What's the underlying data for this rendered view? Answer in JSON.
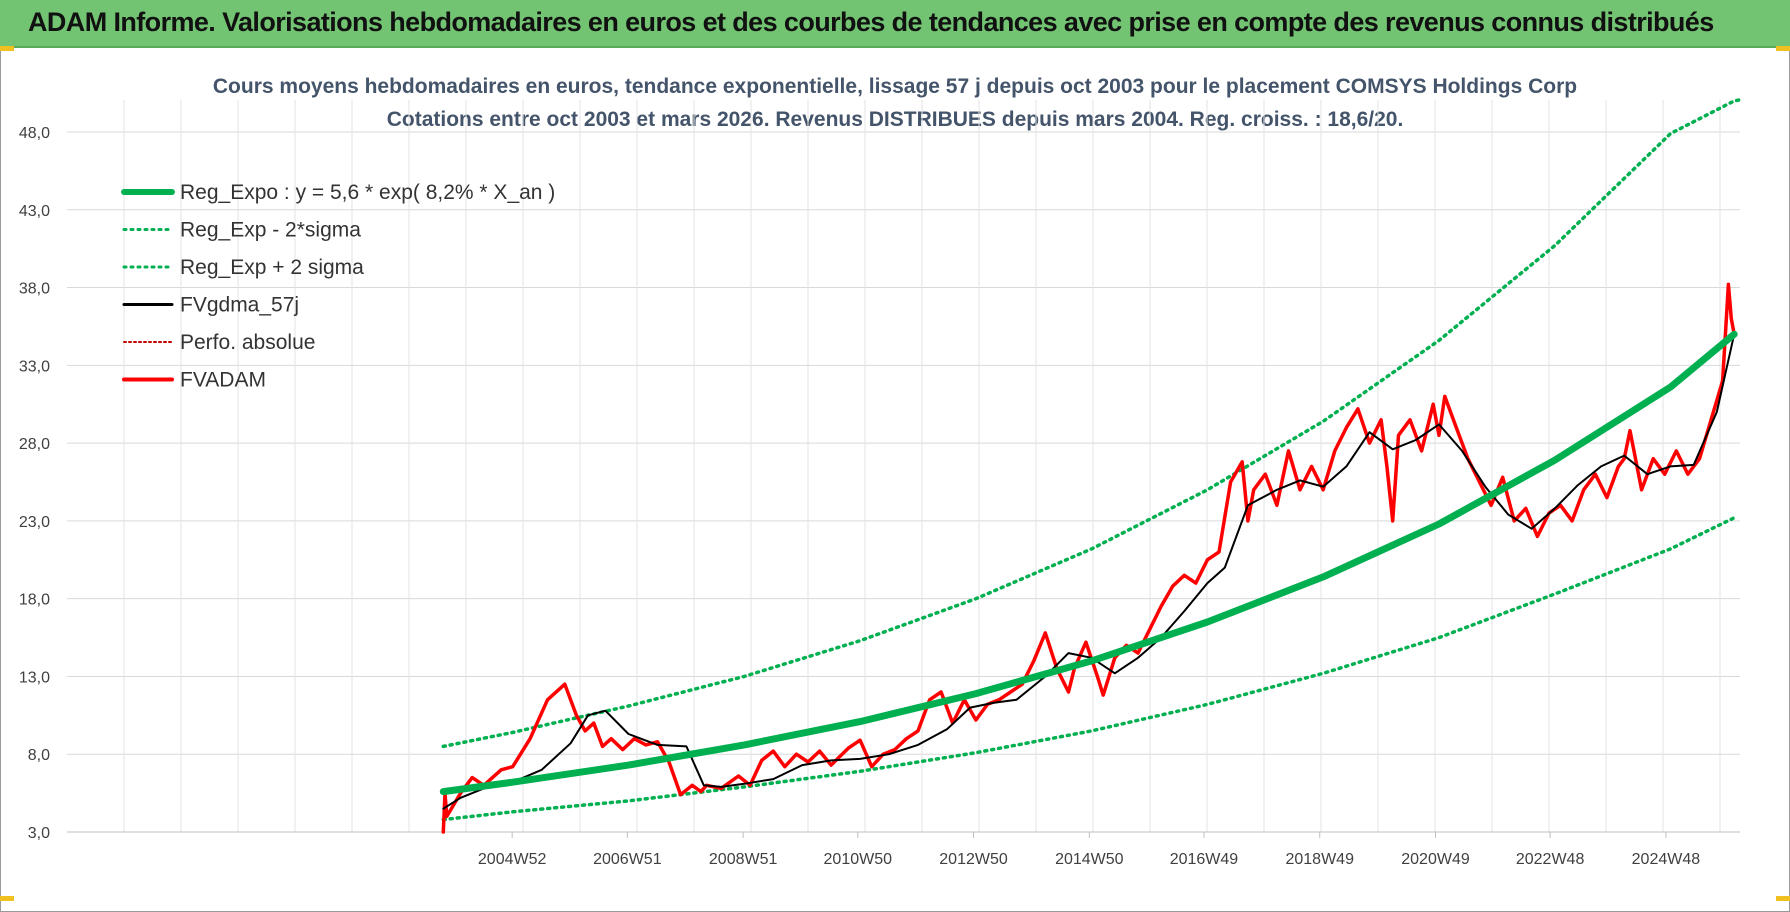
{
  "banner": {
    "title": "ADAM Informe. Valorisations hebdomadaires en euros et des courbes de tendances avec prise en compte des revenus connus distribués"
  },
  "colors": {
    "banner_bg": "#72c472",
    "reg_expo": "#00b050",
    "fvgdma": "#000000",
    "fvadam": "#ff0000",
    "perfo": "#c00000",
    "title_text": "#44546a"
  },
  "chart_data": {
    "type": "line",
    "title_line1": "Cours moyens hebdomadaires en euros, tendance exponentielle, lissage 57 j depuis oct 2003 pour le placement COMSYS Holdings Corp",
    "title_line2": "Cotations entre oct 2003 et mars 2026. Revenus DISTRIBUES depuis mars 2004. Reg. croiss. : 18,6/20.",
    "xlabel": "",
    "ylabel": "",
    "ylim": [
      3,
      50
    ],
    "y_ticks": [
      "3,0",
      "8,0",
      "13,0",
      "18,0",
      "23,0",
      "28,0",
      "33,0",
      "38,0",
      "43,0",
      "48,0"
    ],
    "x_tick_labels": [
      "2004W52",
      "2006W51",
      "2008W51",
      "2010W50",
      "2012W50",
      "2014W50",
      "2016W49",
      "2018W49",
      "2020W49",
      "2022W48",
      "2024W48"
    ],
    "x_tick_years": [
      2004.99,
      2006.98,
      2008.98,
      2010.96,
      2012.96,
      2014.96,
      2016.94,
      2018.94,
      2020.94,
      2022.92,
      2024.92
    ],
    "x_range": [
      1997.3,
      2026.2
    ],
    "grid": true,
    "legend_position": "top-left",
    "legend": [
      {
        "label": "Reg_Expo : y = 5,6 * exp( 8,2% *  X_an )",
        "style": "thick-solid-green"
      },
      {
        "label": "Reg_Exp - 2*sigma",
        "style": "dotted-green"
      },
      {
        "label": "Reg_Exp + 2 sigma",
        "style": "dotted-green"
      },
      {
        "label": "FVgdma_57j",
        "style": "solid-black"
      },
      {
        "label": "Perfo. absolue",
        "style": "dotted-red"
      },
      {
        "label": "FVADAM",
        "style": "thick-solid-red"
      }
    ],
    "series": [
      {
        "name": "Reg_Expo : y = 5,6 * exp( 8,2% *  X_an )",
        "x": [
          2003.8,
          2005,
          2007,
          2009,
          2011,
          2013,
          2015,
          2017,
          2019,
          2021,
          2023,
          2025,
          2026.1
        ],
        "values": [
          5.6,
          6.2,
          7.3,
          8.6,
          10.1,
          11.9,
          14.0,
          16.5,
          19.4,
          22.8,
          26.9,
          31.6,
          35.0
        ]
      },
      {
        "name": "Reg_Exp - 2*sigma",
        "x": [
          2003.8,
          2005,
          2007,
          2009,
          2011,
          2013,
          2015,
          2017,
          2019,
          2021,
          2023,
          2025,
          2026.1
        ],
        "values": [
          3.8,
          4.3,
          5.0,
          5.9,
          6.9,
          8.1,
          9.5,
          11.2,
          13.2,
          15.5,
          18.3,
          21.2,
          23.2
        ]
      },
      {
        "name": "Reg_Exp + 2 sigma",
        "x": [
          2003.8,
          2005,
          2007,
          2009,
          2011,
          2013,
          2015,
          2017,
          2019,
          2021,
          2023,
          2025,
          2026.1
        ],
        "values": [
          8.5,
          9.4,
          11.1,
          13.0,
          15.3,
          18.0,
          21.2,
          25.0,
          29.4,
          34.6,
          40.7,
          47.9,
          50.0
        ]
      },
      {
        "name": "FVgdma_57j",
        "x": [
          2003.8,
          2004.1,
          2004.5,
          2005.0,
          2005.5,
          2006.0,
          2006.3,
          2006.6,
          2007.0,
          2007.5,
          2008.0,
          2008.3,
          2008.6,
          2009.0,
          2009.5,
          2010.0,
          2010.5,
          2011.0,
          2011.5,
          2012.0,
          2012.5,
          2012.9,
          2013.3,
          2013.7,
          2014.2,
          2014.6,
          2015.0,
          2015.4,
          2015.8,
          2016.2,
          2016.6,
          2017.0,
          2017.3,
          2017.7,
          2018.2,
          2018.6,
          2019.0,
          2019.4,
          2019.8,
          2020.2,
          2020.6,
          2021.0,
          2021.4,
          2021.8,
          2022.2,
          2022.6,
          2023.0,
          2023.4,
          2023.8,
          2024.2,
          2024.6,
          2025.0,
          2025.4,
          2025.8,
          2026.1
        ],
        "values": [
          4.5,
          5.2,
          5.8,
          6.2,
          7.0,
          8.7,
          10.5,
          10.8,
          9.3,
          8.6,
          8.5,
          6.0,
          5.9,
          6.1,
          6.4,
          7.3,
          7.6,
          7.7,
          8.0,
          8.6,
          9.6,
          11.0,
          11.3,
          11.5,
          13.0,
          14.5,
          14.2,
          13.2,
          14.2,
          15.5,
          17.2,
          19.0,
          20.0,
          24.0,
          25.0,
          25.6,
          25.2,
          26.5,
          28.7,
          27.6,
          28.2,
          29.2,
          27.5,
          25.2,
          23.4,
          22.5,
          23.8,
          25.3,
          26.5,
          27.2,
          26.0,
          26.5,
          26.6,
          30.0,
          35.0
        ]
      },
      {
        "name": "FVADAM",
        "x": [
          2003.8,
          2003.83,
          2003.86,
          2004.1,
          2004.3,
          2004.5,
          2004.8,
          2005.0,
          2005.3,
          2005.6,
          2005.9,
          2006.1,
          2006.25,
          2006.4,
          2006.55,
          2006.7,
          2006.9,
          2007.1,
          2007.3,
          2007.5,
          2007.7,
          2007.9,
          2008.1,
          2008.25,
          2008.35,
          2008.6,
          2008.9,
          2009.1,
          2009.3,
          2009.5,
          2009.7,
          2009.9,
          2010.1,
          2010.3,
          2010.5,
          2010.8,
          2011.0,
          2011.2,
          2011.4,
          2011.6,
          2011.8,
          2012.0,
          2012.2,
          2012.4,
          2012.6,
          2012.8,
          2013.0,
          2013.2,
          2013.4,
          2013.6,
          2013.8,
          2014.0,
          2014.2,
          2014.4,
          2014.6,
          2014.7,
          2014.9,
          2015.1,
          2015.2,
          2015.4,
          2015.6,
          2015.8,
          2016.0,
          2016.2,
          2016.4,
          2016.6,
          2016.8,
          2017.0,
          2017.2,
          2017.4,
          2017.6,
          2017.7,
          2017.8,
          2018.0,
          2018.2,
          2018.4,
          2018.6,
          2018.8,
          2019.0,
          2019.2,
          2019.4,
          2019.6,
          2019.8,
          2020.0,
          2020.1,
          2020.2,
          2020.3,
          2020.5,
          2020.7,
          2020.9,
          2021.0,
          2021.1,
          2021.3,
          2021.5,
          2021.7,
          2021.9,
          2022.1,
          2022.3,
          2022.5,
          2022.7,
          2022.9,
          2023.1,
          2023.3,
          2023.5,
          2023.7,
          2023.9,
          2024.1,
          2024.2,
          2024.3,
          2024.5,
          2024.7,
          2024.9,
          2025.1,
          2025.3,
          2025.5,
          2025.7,
          2025.9,
          2026.0,
          2026.05,
          2026.1
        ],
        "values": [
          3.0,
          5.5,
          4.0,
          5.5,
          6.5,
          6.0,
          7.0,
          7.2,
          9.0,
          11.5,
          12.5,
          10.5,
          9.5,
          10.0,
          8.5,
          9.0,
          8.3,
          9.0,
          8.6,
          8.8,
          7.5,
          5.4,
          6.0,
          5.6,
          6.0,
          5.8,
          6.6,
          6.0,
          7.6,
          8.2,
          7.2,
          8.0,
          7.5,
          8.2,
          7.3,
          8.4,
          8.9,
          7.2,
          8.0,
          8.3,
          9.0,
          9.5,
          11.5,
          12.0,
          10.0,
          11.5,
          10.2,
          11.2,
          11.5,
          12.0,
          12.5,
          14.0,
          15.8,
          13.5,
          12.0,
          13.5,
          15.2,
          13.0,
          11.8,
          14.2,
          15.0,
          14.5,
          16.0,
          17.5,
          18.8,
          19.5,
          19.0,
          20.5,
          21.0,
          25.5,
          26.8,
          23.0,
          25.0,
          26.0,
          24.0,
          27.5,
          25.0,
          26.5,
          25.0,
          27.5,
          29.0,
          30.2,
          28.0,
          29.5,
          26.5,
          23.0,
          28.5,
          29.5,
          27.5,
          30.5,
          28.5,
          31.0,
          29.0,
          27.0,
          25.5,
          24.0,
          25.8,
          23.0,
          23.8,
          22.0,
          23.5,
          24.0,
          23.0,
          25.0,
          26.0,
          24.5,
          26.5,
          27.0,
          28.8,
          25.0,
          27.0,
          26.0,
          27.5,
          26.0,
          27.0,
          29.5,
          32.0,
          38.2,
          36.0,
          35.0
        ]
      }
    ]
  }
}
